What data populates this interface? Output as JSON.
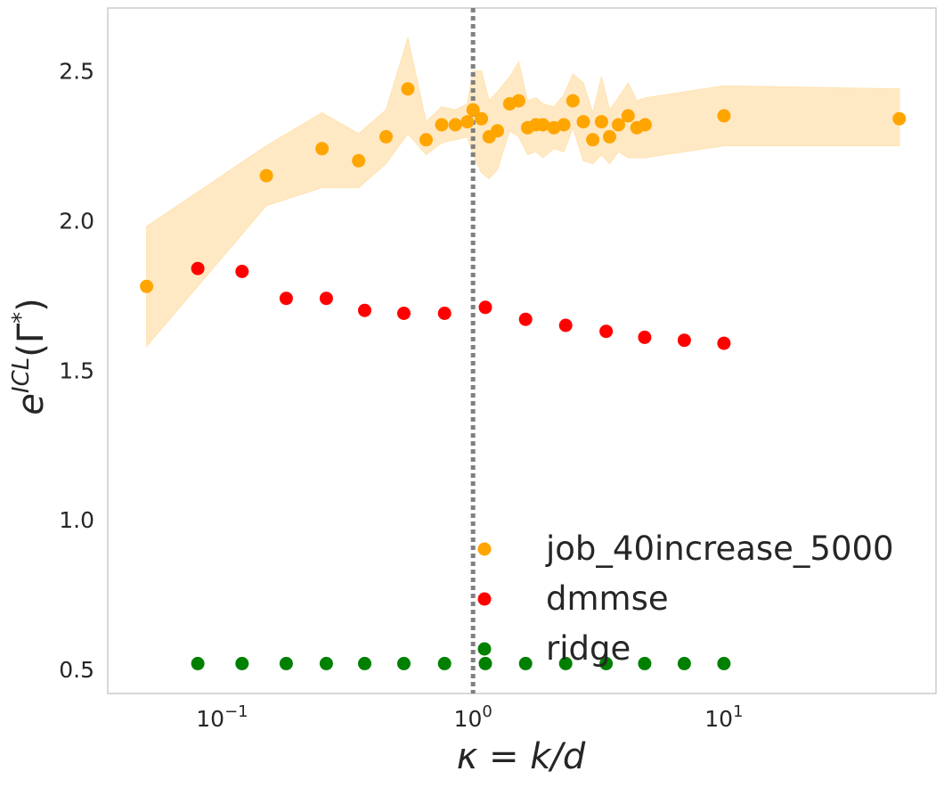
{
  "chart_data": {
    "type": "scatter",
    "xscale": "log",
    "xlabel": "κ = k/d",
    "ylabel": "e^{ICL}(Γ*)",
    "xlim": [
      0.035,
      70
    ],
    "ylim": [
      0.42,
      2.71
    ],
    "xticks": [
      {
        "value": 0.1,
        "label": "10^-1"
      },
      {
        "value": 1,
        "label": "10^0"
      },
      {
        "value": 10,
        "label": "10^1"
      }
    ],
    "yticks": [
      {
        "value": 0.5,
        "label": "0.5"
      },
      {
        "value": 1.0,
        "label": "1.0"
      },
      {
        "value": 1.5,
        "label": "1.5"
      },
      {
        "value": 2.0,
        "label": "2.0"
      },
      {
        "value": 2.5,
        "label": "2.5"
      }
    ],
    "vline": {
      "x": 1.0,
      "style": "dotted",
      "color": "#808080"
    },
    "grid": false,
    "legend_position": "lower-right",
    "series": [
      {
        "name": "job_40increase_5000",
        "color": "#ffa500",
        "band_color": "#ffe2b0",
        "points": [
          {
            "x": 0.05,
            "y": 1.78
          },
          {
            "x": 0.15,
            "y": 2.15
          },
          {
            "x": 0.25,
            "y": 2.24
          },
          {
            "x": 0.35,
            "y": 2.2
          },
          {
            "x": 0.45,
            "y": 2.28
          },
          {
            "x": 0.55,
            "y": 2.44
          },
          {
            "x": 0.65,
            "y": 2.27
          },
          {
            "x": 0.75,
            "y": 2.32
          },
          {
            "x": 0.85,
            "y": 2.32
          },
          {
            "x": 0.95,
            "y": 2.33
          },
          {
            "x": 1.0,
            "y": 2.37
          },
          {
            "x": 1.08,
            "y": 2.34
          },
          {
            "x": 1.16,
            "y": 2.28
          },
          {
            "x": 1.25,
            "y": 2.3
          },
          {
            "x": 1.4,
            "y": 2.39
          },
          {
            "x": 1.52,
            "y": 2.4
          },
          {
            "x": 1.65,
            "y": 2.31
          },
          {
            "x": 1.78,
            "y": 2.32
          },
          {
            "x": 1.9,
            "y": 2.32
          },
          {
            "x": 2.1,
            "y": 2.31
          },
          {
            "x": 2.3,
            "y": 2.32
          },
          {
            "x": 2.5,
            "y": 2.4
          },
          {
            "x": 2.75,
            "y": 2.33
          },
          {
            "x": 3.0,
            "y": 2.27
          },
          {
            "x": 3.25,
            "y": 2.33
          },
          {
            "x": 3.5,
            "y": 2.28
          },
          {
            "x": 3.8,
            "y": 2.32
          },
          {
            "x": 4.15,
            "y": 2.35
          },
          {
            "x": 4.5,
            "y": 2.31
          },
          {
            "x": 4.85,
            "y": 2.32
          },
          {
            "x": 10.0,
            "y": 2.35
          },
          {
            "x": 50.0,
            "y": 2.34
          }
        ],
        "band": [
          {
            "x": 0.05,
            "lo": 1.58,
            "hi": 1.98
          },
          {
            "x": 0.15,
            "lo": 2.05,
            "hi": 2.25
          },
          {
            "x": 0.25,
            "lo": 2.11,
            "hi": 2.36
          },
          {
            "x": 0.35,
            "lo": 2.11,
            "hi": 2.29
          },
          {
            "x": 0.45,
            "lo": 2.19,
            "hi": 2.37
          },
          {
            "x": 0.55,
            "lo": 2.29,
            "hi": 2.61
          },
          {
            "x": 0.65,
            "lo": 2.22,
            "hi": 2.33
          },
          {
            "x": 0.75,
            "lo": 2.26,
            "hi": 2.38
          },
          {
            "x": 0.85,
            "lo": 2.27,
            "hi": 2.37
          },
          {
            "x": 0.95,
            "lo": 2.28,
            "hi": 2.39
          },
          {
            "x": 1.0,
            "lo": 2.22,
            "hi": 2.5
          },
          {
            "x": 1.08,
            "lo": 2.16,
            "hi": 2.5
          },
          {
            "x": 1.16,
            "lo": 2.14,
            "hi": 2.4
          },
          {
            "x": 1.25,
            "lo": 2.17,
            "hi": 2.43
          },
          {
            "x": 1.4,
            "lo": 2.3,
            "hi": 2.48
          },
          {
            "x": 1.52,
            "lo": 2.28,
            "hi": 2.53
          },
          {
            "x": 1.65,
            "lo": 2.22,
            "hi": 2.4
          },
          {
            "x": 1.78,
            "lo": 2.23,
            "hi": 2.41
          },
          {
            "x": 1.9,
            "lo": 2.21,
            "hi": 2.39
          },
          {
            "x": 2.1,
            "lo": 2.24,
            "hi": 2.38
          },
          {
            "x": 2.3,
            "lo": 2.23,
            "hi": 2.42
          },
          {
            "x": 2.5,
            "lo": 2.31,
            "hi": 2.49
          },
          {
            "x": 2.75,
            "lo": 2.2,
            "hi": 2.46
          },
          {
            "x": 3.0,
            "lo": 2.19,
            "hi": 2.36
          },
          {
            "x": 3.25,
            "lo": 2.22,
            "hi": 2.48
          },
          {
            "x": 3.5,
            "lo": 2.19,
            "hi": 2.37
          },
          {
            "x": 3.8,
            "lo": 2.23,
            "hi": 2.41
          },
          {
            "x": 4.15,
            "lo": 2.21,
            "hi": 2.46
          },
          {
            "x": 4.5,
            "lo": 2.21,
            "hi": 2.4
          },
          {
            "x": 4.85,
            "lo": 2.21,
            "hi": 2.41
          },
          {
            "x": 10.0,
            "lo": 2.25,
            "hi": 2.45
          },
          {
            "x": 50.0,
            "lo": 2.25,
            "hi": 2.44
          }
        ]
      },
      {
        "name": "dmmse",
        "color": "#ff0000",
        "points": [
          {
            "x": 0.08,
            "y": 1.84
          },
          {
            "x": 0.12,
            "y": 1.83
          },
          {
            "x": 0.18,
            "y": 1.74
          },
          {
            "x": 0.26,
            "y": 1.74
          },
          {
            "x": 0.37,
            "y": 1.7
          },
          {
            "x": 0.53,
            "y": 1.69
          },
          {
            "x": 0.77,
            "y": 1.69
          },
          {
            "x": 1.12,
            "y": 1.71
          },
          {
            "x": 1.62,
            "y": 1.67
          },
          {
            "x": 2.34,
            "y": 1.65
          },
          {
            "x": 3.39,
            "y": 1.63
          },
          {
            "x": 4.83,
            "y": 1.61
          },
          {
            "x": 6.95,
            "y": 1.6
          },
          {
            "x": 10.0,
            "y": 1.59
          }
        ]
      },
      {
        "name": "ridge",
        "color": "#008000",
        "points": [
          {
            "x": 0.08,
            "y": 0.52
          },
          {
            "x": 0.12,
            "y": 0.52
          },
          {
            "x": 0.18,
            "y": 0.52
          },
          {
            "x": 0.26,
            "y": 0.52
          },
          {
            "x": 0.37,
            "y": 0.52
          },
          {
            "x": 0.53,
            "y": 0.52
          },
          {
            "x": 0.77,
            "y": 0.52
          },
          {
            "x": 1.12,
            "y": 0.52
          },
          {
            "x": 1.62,
            "y": 0.52
          },
          {
            "x": 2.34,
            "y": 0.52
          },
          {
            "x": 3.39,
            "y": 0.52
          },
          {
            "x": 4.83,
            "y": 0.52
          },
          {
            "x": 6.95,
            "y": 0.52
          },
          {
            "x": 10.0,
            "y": 0.52
          }
        ]
      }
    ]
  }
}
